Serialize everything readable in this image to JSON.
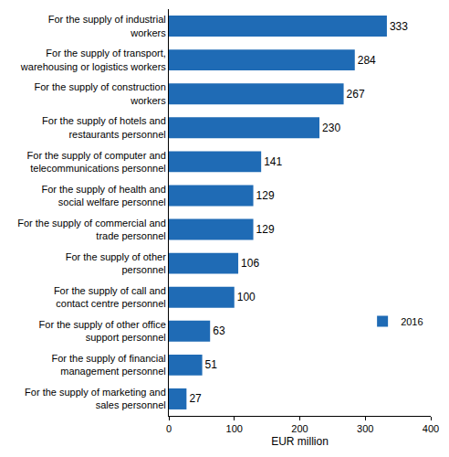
{
  "chart_data": {
    "type": "bar",
    "orientation": "horizontal",
    "categories": [
      "For the supply of industrial workers",
      "For the supply of transport, warehousing or logistics workers",
      "For the supply of construction workers",
      "For the supply of hotels and restaurants personnel",
      "For the supply of computer and telecommunications personnel",
      "For the supply of health and social welfare personnel",
      "For the supply of commercial and trade personnel",
      "For the supply of other personnel",
      "For the supply of call and contact centre personnel",
      "For the supply of other office support personnel",
      "For the supply of financial management personnel",
      "For the supply of marketing and sales personnel"
    ],
    "series": [
      {
        "name": "2016",
        "color": "#1f6bb5",
        "values": [
          333,
          284,
          267,
          230,
          141,
          129,
          129,
          106,
          100,
          63,
          51,
          27
        ]
      }
    ],
    "x_label": "EUR million",
    "xlim": [
      0,
      400
    ],
    "xticks": [
      0,
      100,
      200,
      300,
      400
    ],
    "grid": false,
    "legend": "lower right",
    "data_labels": true
  }
}
